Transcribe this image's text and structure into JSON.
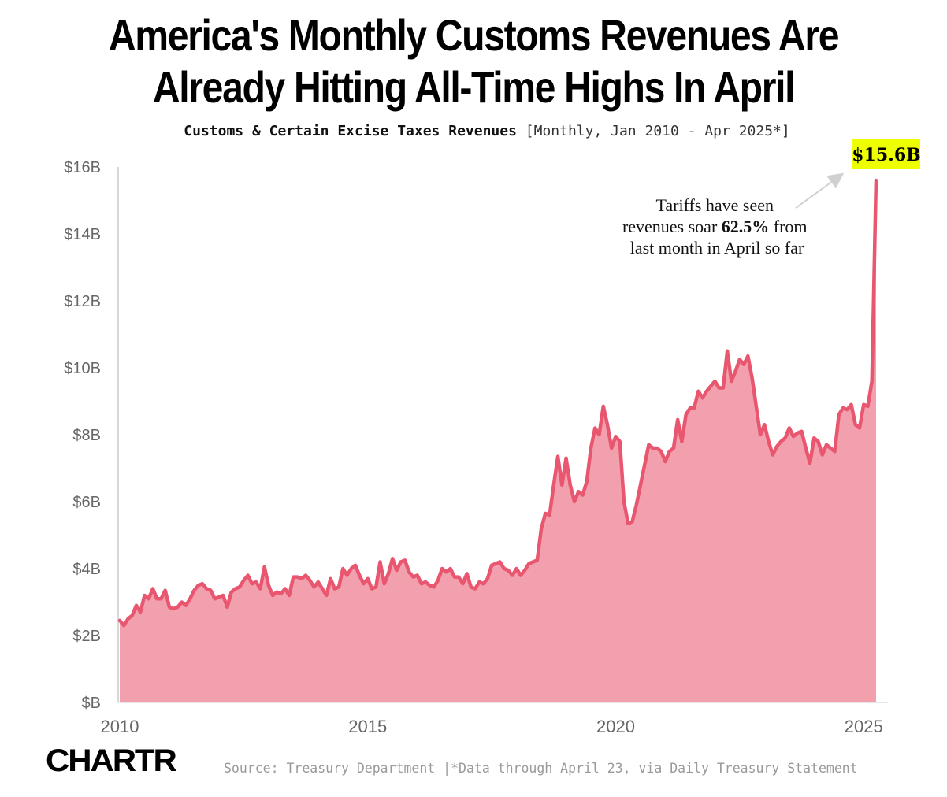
{
  "title_line1": "America's Monthly Customs Revenues Are",
  "title_line2": "Already Hitting All-Time Highs In April",
  "subtitle_main": "Customs & Certain Excise Taxes Revenues",
  "subtitle_range": "[Monthly, Jan 2010 - Apr 2025*]",
  "annotation": {
    "callout_value": "$15.6B",
    "line1": "Tariffs have seen",
    "line2_pre": "revenues soar ",
    "line2_bold": "62.5%",
    "line2_post": " from",
    "line3": "last month in April so far"
  },
  "logo": "CHARTR",
  "source": "Source: Treasury Department |*Data through April 23, via Daily Treasury Statement",
  "colors": {
    "line": "#E8566F",
    "fill": "#F29FAE",
    "highlight": "#EEFF00",
    "axis": "#cccccc",
    "tick_text": "#666666"
  },
  "chart_data": {
    "type": "area",
    "title": "America's Monthly Customs Revenues Are Already Hitting All-Time Highs In April",
    "subtitle": "Customs & Certain Excise Taxes Revenues [Monthly, Jan 2010 - Apr 2025*]",
    "x_start": "2010-01",
    "x_end": "2025-04",
    "frequency": "monthly",
    "unit": "$B",
    "xlim": [
      2010,
      2025.33
    ],
    "ylim": [
      0,
      16
    ],
    "grid": false,
    "x_ticks": [
      2010,
      2015,
      2020,
      2025
    ],
    "x_tick_labels": [
      "2010",
      "2015",
      "2020",
      "2025"
    ],
    "y_ticks": [
      0,
      2,
      4,
      6,
      8,
      10,
      12,
      14,
      16
    ],
    "y_tick_labels": [
      "$B",
      "$2B",
      "$4B",
      "$6B",
      "$8B",
      "$10B",
      "$12B",
      "$14B",
      "$16B"
    ],
    "values": [
      2.45,
      2.3,
      2.5,
      2.6,
      2.9,
      2.7,
      3.2,
      3.1,
      3.4,
      3.1,
      3.1,
      3.35,
      2.85,
      2.8,
      2.85,
      3.0,
      2.9,
      3.1,
      3.35,
      3.5,
      3.55,
      3.4,
      3.35,
      3.1,
      3.15,
      3.2,
      2.85,
      3.3,
      3.4,
      3.45,
      3.65,
      3.8,
      3.55,
      3.6,
      3.4,
      4.05,
      3.5,
      3.2,
      3.3,
      3.25,
      3.4,
      3.2,
      3.75,
      3.75,
      3.7,
      3.8,
      3.65,
      3.45,
      3.6,
      3.4,
      3.2,
      3.7,
      3.4,
      3.45,
      4.0,
      3.8,
      4.0,
      4.1,
      3.8,
      3.55,
      3.7,
      3.4,
      3.45,
      4.2,
      3.55,
      3.85,
      4.3,
      3.95,
      4.2,
      4.25,
      3.9,
      3.75,
      3.8,
      3.55,
      3.6,
      3.5,
      3.45,
      3.65,
      4.0,
      3.9,
      4.0,
      3.75,
      3.75,
      3.55,
      3.85,
      3.45,
      3.4,
      3.6,
      3.55,
      3.7,
      4.1,
      4.15,
      4.2,
      4.0,
      3.95,
      3.8,
      4.0,
      3.8,
      3.95,
      4.15,
      4.2,
      4.25,
      5.2,
      5.65,
      5.6,
      6.5,
      7.35,
      6.5,
      7.3,
      6.5,
      6.0,
      6.3,
      6.2,
      6.6,
      7.6,
      8.2,
      8.0,
      8.85,
      8.3,
      7.6,
      7.95,
      7.8,
      6.0,
      5.35,
      5.4,
      5.9,
      6.5,
      7.1,
      7.7,
      7.6,
      7.6,
      7.5,
      7.2,
      7.5,
      7.6,
      8.45,
      7.8,
      8.6,
      8.8,
      8.8,
      9.3,
      9.1,
      9.3,
      9.45,
      9.6,
      9.4,
      9.4,
      10.5,
      9.6,
      9.9,
      10.25,
      10.1,
      10.35,
      9.7,
      8.85,
      8.0,
      8.3,
      7.8,
      7.4,
      7.65,
      7.8,
      7.9,
      8.2,
      7.95,
      8.05,
      8.1,
      7.6,
      7.15,
      7.9,
      7.8,
      7.4,
      7.7,
      7.6,
      7.5,
      8.6,
      8.8,
      8.75,
      8.9,
      8.3,
      8.2,
      8.9,
      8.85,
      9.6,
      15.6
    ],
    "annotations": [
      {
        "label": "$15.6B",
        "x": "2025-04",
        "y": 15.6
      },
      {
        "label": "Tariffs have seen revenues soar 62.5% from last month in April so far"
      }
    ]
  }
}
